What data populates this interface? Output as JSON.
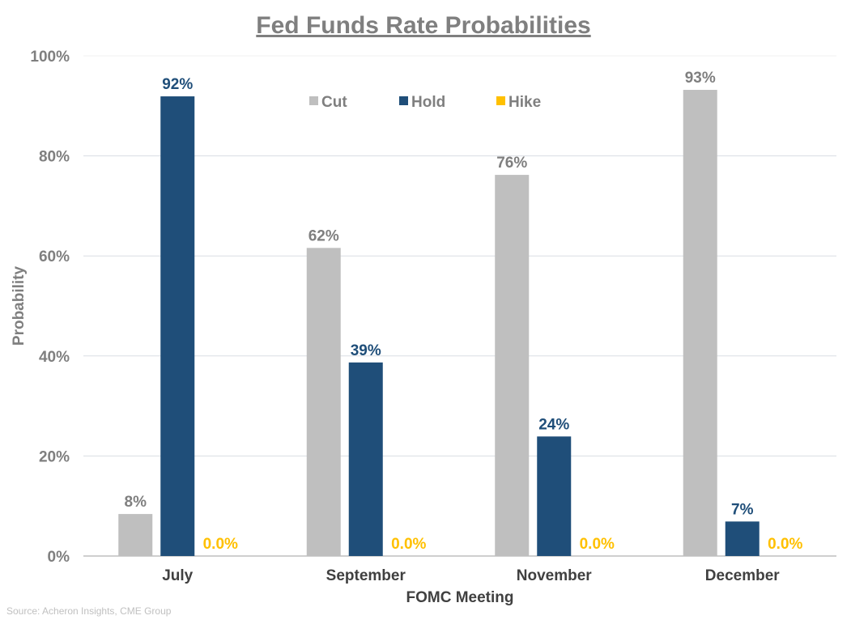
{
  "chart_data": {
    "type": "bar",
    "title": "Fed Funds Rate Probabilities",
    "xlabel": "FOMC Meeting",
    "ylabel": "Probability",
    "ylim": [
      0,
      100
    ],
    "yticks": [
      0,
      20,
      40,
      60,
      80,
      100
    ],
    "ytick_labels": [
      "0%",
      "20%",
      "40%",
      "60%",
      "80%",
      "100%"
    ],
    "grid": true,
    "legend": "top-center",
    "categories": [
      "July",
      "September",
      "November",
      "December"
    ],
    "series": [
      {
        "name": "Cut",
        "color": "#bfbfbf",
        "label_color": "#7f7f7f",
        "values": [
          8.4,
          61.6,
          76.2,
          93.2
        ],
        "labels": [
          "8%",
          "62%",
          "76%",
          "93%"
        ]
      },
      {
        "name": "Hold",
        "color": "#1f4e79",
        "label_color": "#1f4e79",
        "values": [
          91.9,
          38.7,
          23.9,
          6.9
        ],
        "labels": [
          "92%",
          "39%",
          "24%",
          "7%"
        ]
      },
      {
        "name": "Hike",
        "color": "#ffc000",
        "label_color": "#ffc000",
        "values": [
          0,
          0,
          0,
          0
        ],
        "labels": [
          "0.0%",
          "0.0%",
          "0.0%",
          "0.0%"
        ]
      }
    ],
    "source": "Source: Acheron Insights, CME Group"
  }
}
